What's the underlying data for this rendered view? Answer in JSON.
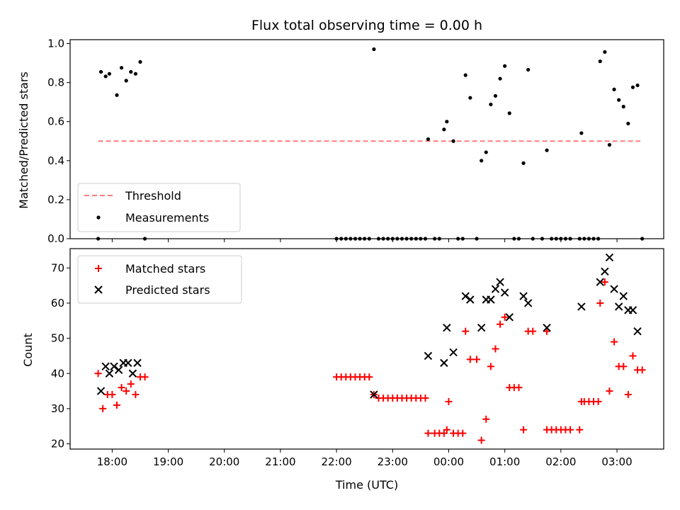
{
  "chart_data": [
    {
      "type": "scatter",
      "title": "Flux total observing time = 0.00 h",
      "xlabel": "",
      "ylabel": "Matched/Predicted stars",
      "xlim": [
        "17:15",
        "03:50"
      ],
      "ylim": [
        0,
        1.02
      ],
      "yticks": [
        "0.0",
        "0.2",
        "0.4",
        "0.6",
        "0.8",
        "1.0"
      ],
      "legend_position": "lower-left",
      "threshold": {
        "name": "Threshold",
        "value": 0.5,
        "x": [
          "17:45",
          "03:25"
        ],
        "color": "#ff7b7b"
      },
      "series": [
        {
          "name": "Measurements",
          "color": "#000000",
          "points": [
            [
              "17:45",
              0.0
            ],
            [
              "17:48",
              0.855
            ],
            [
              "17:53",
              0.832
            ],
            [
              "17:57",
              0.845
            ],
            [
              "18:05",
              0.736
            ],
            [
              "18:10",
              0.876
            ],
            [
              "18:15",
              0.81
            ],
            [
              "18:20",
              0.855
            ],
            [
              "18:25",
              0.845
            ],
            [
              "18:30",
              0.906
            ],
            [
              "18:35",
              0.0
            ],
            [
              "22:00",
              0.0
            ],
            [
              "22:05",
              0.0
            ],
            [
              "22:10",
              0.0
            ],
            [
              "22:15",
              0.0
            ],
            [
              "22:20",
              0.0
            ],
            [
              "22:25",
              0.0
            ],
            [
              "22:30",
              0.0
            ],
            [
              "22:35",
              0.0
            ],
            [
              "22:40",
              0.971
            ],
            [
              "22:45",
              0.0
            ],
            [
              "22:50",
              0.0
            ],
            [
              "22:55",
              0.0
            ],
            [
              "23:00",
              0.0
            ],
            [
              "23:05",
              0.0
            ],
            [
              "23:10",
              0.0
            ],
            [
              "23:15",
              0.0
            ],
            [
              "23:20",
              0.0
            ],
            [
              "23:25",
              0.0
            ],
            [
              "23:30",
              0.0
            ],
            [
              "23:35",
              0.0
            ],
            [
              "23:38",
              0.51
            ],
            [
              "23:45",
              0.0
            ],
            [
              "23:50",
              0.0
            ],
            [
              "23:55",
              0.56
            ],
            [
              "23:58",
              0.6
            ],
            [
              "00:05",
              0.5
            ],
            [
              "00:10",
              0.0
            ],
            [
              "00:15",
              0.0
            ],
            [
              "00:18",
              0.838
            ],
            [
              "00:23",
              0.722
            ],
            [
              "00:30",
              0.0
            ],
            [
              "00:35",
              0.4
            ],
            [
              "00:40",
              0.443
            ],
            [
              "00:45",
              0.688
            ],
            [
              "00:50",
              0.732
            ],
            [
              "00:55",
              0.82
            ],
            [
              "01:00",
              0.885
            ],
            [
              "01:05",
              0.643
            ],
            [
              "01:10",
              0.0
            ],
            [
              "01:15",
              0.0
            ],
            [
              "01:20",
              0.387
            ],
            [
              "01:25",
              0.866
            ],
            [
              "01:30",
              0.0
            ],
            [
              "01:40",
              0.0
            ],
            [
              "01:45",
              0.453
            ],
            [
              "01:50",
              0.0
            ],
            [
              "01:55",
              0.0
            ],
            [
              "02:00",
              0.0
            ],
            [
              "02:05",
              0.0
            ],
            [
              "02:10",
              0.0
            ],
            [
              "02:20",
              0.0
            ],
            [
              "02:22",
              0.541
            ],
            [
              "02:25",
              0.0
            ],
            [
              "02:30",
              0.0
            ],
            [
              "02:35",
              0.0
            ],
            [
              "02:40",
              0.0
            ],
            [
              "02:42",
              0.909
            ],
            [
              "02:47",
              0.957
            ],
            [
              "02:52",
              0.481
            ],
            [
              "02:57",
              0.765
            ],
            [
              "03:02",
              0.711
            ],
            [
              "03:07",
              0.677
            ],
            [
              "03:12",
              0.59
            ],
            [
              "03:17",
              0.776
            ],
            [
              "03:22",
              0.786
            ],
            [
              "03:27",
              0.0
            ]
          ]
        }
      ]
    },
    {
      "type": "scatter",
      "title": "",
      "xlabel": "Time (UTC)",
      "ylabel": "Count",
      "xlim": [
        "17:15",
        "03:50"
      ],
      "ylim": [
        18.5,
        75.5
      ],
      "yticks": [
        "20",
        "30",
        "40",
        "50",
        "60",
        "70"
      ],
      "xticks": [
        "18:00",
        "19:00",
        "20:00",
        "21:00",
        "22:00",
        "23:00",
        "00:00",
        "01:00",
        "02:00",
        "03:00"
      ],
      "legend_position": "upper-left",
      "series": [
        {
          "name": "Matched stars",
          "marker": "plus",
          "color": "#ff0000",
          "points": [
            [
              "17:45",
              40
            ],
            [
              "17:50",
              30
            ],
            [
              "17:55",
              34
            ],
            [
              "18:00",
              34
            ],
            [
              "18:05",
              31
            ],
            [
              "18:10",
              36
            ],
            [
              "18:15",
              35
            ],
            [
              "18:20",
              37
            ],
            [
              "18:25",
              34
            ],
            [
              "18:30",
              39
            ],
            [
              "18:35",
              39
            ],
            [
              "22:00",
              39
            ],
            [
              "22:05",
              39
            ],
            [
              "22:10",
              39
            ],
            [
              "22:15",
              39
            ],
            [
              "22:20",
              39
            ],
            [
              "22:25",
              39
            ],
            [
              "22:30",
              39
            ],
            [
              "22:35",
              39
            ],
            [
              "22:40",
              34
            ],
            [
              "22:45",
              33
            ],
            [
              "22:50",
              33
            ],
            [
              "22:55",
              33
            ],
            [
              "23:00",
              33
            ],
            [
              "23:05",
              33
            ],
            [
              "23:10",
              33
            ],
            [
              "23:15",
              33
            ],
            [
              "23:20",
              33
            ],
            [
              "23:25",
              33
            ],
            [
              "23:30",
              33
            ],
            [
              "23:35",
              33
            ],
            [
              "23:38",
              23
            ],
            [
              "23:45",
              23
            ],
            [
              "23:50",
              23
            ],
            [
              "23:55",
              23
            ],
            [
              "23:58",
              24
            ],
            [
              "00:00",
              32
            ],
            [
              "00:05",
              23
            ],
            [
              "00:10",
              23
            ],
            [
              "00:15",
              23
            ],
            [
              "00:18",
              52
            ],
            [
              "00:23",
              44
            ],
            [
              "00:30",
              44
            ],
            [
              "00:35",
              21
            ],
            [
              "00:40",
              27
            ],
            [
              "00:45",
              42
            ],
            [
              "00:50",
              47
            ],
            [
              "00:55",
              54
            ],
            [
              "01:00",
              56
            ],
            [
              "01:05",
              36
            ],
            [
              "01:10",
              36
            ],
            [
              "01:15",
              36
            ],
            [
              "01:20",
              24
            ],
            [
              "01:25",
              52
            ],
            [
              "01:30",
              52
            ],
            [
              "01:45",
              52
            ],
            [
              "01:45",
              24
            ],
            [
              "01:50",
              24
            ],
            [
              "01:55",
              24
            ],
            [
              "02:00",
              24
            ],
            [
              "02:05",
              24
            ],
            [
              "02:10",
              24
            ],
            [
              "02:20",
              24
            ],
            [
              "02:22",
              32
            ],
            [
              "02:25",
              32
            ],
            [
              "02:30",
              32
            ],
            [
              "02:35",
              32
            ],
            [
              "02:40",
              32
            ],
            [
              "02:42",
              60
            ],
            [
              "02:47",
              66
            ],
            [
              "02:52",
              35
            ],
            [
              "02:57",
              49
            ],
            [
              "03:02",
              42
            ],
            [
              "03:07",
              42
            ],
            [
              "03:12",
              34
            ],
            [
              "03:17",
              45
            ],
            [
              "03:22",
              41
            ],
            [
              "03:27",
              41
            ]
          ]
        },
        {
          "name": "Predicted stars",
          "marker": "x",
          "color": "#000000",
          "points": [
            [
              "17:48",
              35
            ],
            [
              "17:53",
              42
            ],
            [
              "17:57",
              40
            ],
            [
              "18:02",
              42
            ],
            [
              "18:07",
              41
            ],
            [
              "18:12",
              43
            ],
            [
              "18:17",
              43
            ],
            [
              "18:22",
              40
            ],
            [
              "18:27",
              43
            ],
            [
              "22:40",
              34
            ],
            [
              "23:38",
              45
            ],
            [
              "23:55",
              43
            ],
            [
              "23:58",
              53
            ],
            [
              "00:05",
              46
            ],
            [
              "00:18",
              62
            ],
            [
              "00:23",
              61
            ],
            [
              "00:35",
              53
            ],
            [
              "00:40",
              61
            ],
            [
              "00:45",
              61
            ],
            [
              "00:50",
              64
            ],
            [
              "00:55",
              66
            ],
            [
              "01:00",
              63
            ],
            [
              "01:05",
              56
            ],
            [
              "01:20",
              62
            ],
            [
              "01:25",
              60
            ],
            [
              "01:45",
              53
            ],
            [
              "02:22",
              59
            ],
            [
              "02:42",
              66
            ],
            [
              "02:47",
              69
            ],
            [
              "02:52",
              73
            ],
            [
              "02:57",
              64
            ],
            [
              "03:02",
              59
            ],
            [
              "03:07",
              62
            ],
            [
              "03:12",
              58
            ],
            [
              "03:17",
              58
            ],
            [
              "03:22",
              52
            ]
          ]
        }
      ]
    }
  ]
}
